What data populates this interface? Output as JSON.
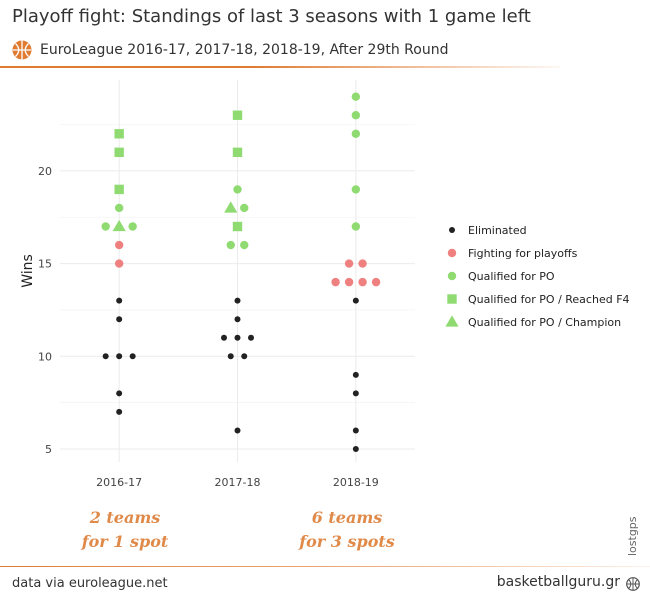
{
  "header": {
    "title": "Playoff fight: Standings of last 3 seasons with 1 game left",
    "subtitle": "EuroLeague 2016-17, 2017-18, 2018-19, After 29th Round"
  },
  "annotations": {
    "left": [
      "2 teams",
      "for 1 spot"
    ],
    "right": [
      "6 teams",
      "for 3 spots"
    ]
  },
  "footer": {
    "source": "data via euroleague.net",
    "brand": "basketballguru.gr",
    "credit": "lostgps"
  },
  "colors": {
    "eliminated": "#222222",
    "fighting": "#ef8080",
    "qualified": "#8fdb72",
    "accent": "#e07b32"
  },
  "chart_data": {
    "type": "scatter",
    "title": "",
    "xlabel": "",
    "ylabel": "Wins",
    "categories": [
      "2016-17",
      "2017-18",
      "2018-19"
    ],
    "yticks": [
      5,
      10,
      15,
      20
    ],
    "ylim": [
      4.3,
      24.9
    ],
    "grid": true,
    "legend_position": "right",
    "legend": [
      {
        "key": "elim",
        "label": "Eliminated",
        "shape": "dot",
        "color": "#222222"
      },
      {
        "key": "fight",
        "label": "Fighting for playoffs",
        "shape": "circle",
        "color": "#ef8080"
      },
      {
        "key": "po",
        "label": "Qualified for PO",
        "shape": "circle",
        "color": "#8fdb72"
      },
      {
        "key": "f4",
        "label": "Qualified for PO / Reached F4",
        "shape": "square",
        "color": "#8fdb72"
      },
      {
        "key": "champ",
        "label": "Qualified for PO / Champion",
        "shape": "triangle",
        "color": "#8fdb72"
      }
    ],
    "series": [
      {
        "key": "f4",
        "points": [
          {
            "x": "2016-17",
            "y": 22
          },
          {
            "x": "2016-17",
            "y": 21
          },
          {
            "x": "2016-17",
            "y": 19
          },
          {
            "x": "2017-18",
            "y": 23
          },
          {
            "x": "2017-18",
            "y": 21
          },
          {
            "x": "2017-18",
            "y": 17
          }
        ]
      },
      {
        "key": "champ",
        "points": [
          {
            "x": "2016-17",
            "y": 17
          },
          {
            "x": "2017-18",
            "y": 18
          }
        ]
      },
      {
        "key": "po",
        "points": [
          {
            "x": "2016-17",
            "y": 18
          },
          {
            "x": "2016-17",
            "y": 17
          },
          {
            "x": "2016-17",
            "y": 17
          },
          {
            "x": "2017-18",
            "y": 19
          },
          {
            "x": "2017-18",
            "y": 18
          },
          {
            "x": "2017-18",
            "y": 16
          },
          {
            "x": "2017-18",
            "y": 16
          },
          {
            "x": "2018-19",
            "y": 24
          },
          {
            "x": "2018-19",
            "y": 23
          },
          {
            "x": "2018-19",
            "y": 22
          },
          {
            "x": "2018-19",
            "y": 19
          },
          {
            "x": "2018-19",
            "y": 17
          }
        ]
      },
      {
        "key": "fight",
        "points": [
          {
            "x": "2016-17",
            "y": 16
          },
          {
            "x": "2016-17",
            "y": 15
          },
          {
            "x": "2018-19",
            "y": 15
          },
          {
            "x": "2018-19",
            "y": 15
          },
          {
            "x": "2018-19",
            "y": 14
          },
          {
            "x": "2018-19",
            "y": 14
          },
          {
            "x": "2018-19",
            "y": 14
          },
          {
            "x": "2018-19",
            "y": 14
          }
        ]
      },
      {
        "key": "elim",
        "points": [
          {
            "x": "2016-17",
            "y": 13
          },
          {
            "x": "2016-17",
            "y": 12
          },
          {
            "x": "2016-17",
            "y": 10
          },
          {
            "x": "2016-17",
            "y": 10
          },
          {
            "x": "2016-17",
            "y": 10
          },
          {
            "x": "2016-17",
            "y": 8
          },
          {
            "x": "2016-17",
            "y": 7
          },
          {
            "x": "2017-18",
            "y": 13
          },
          {
            "x": "2017-18",
            "y": 12
          },
          {
            "x": "2017-18",
            "y": 11
          },
          {
            "x": "2017-18",
            "y": 11
          },
          {
            "x": "2017-18",
            "y": 11
          },
          {
            "x": "2017-18",
            "y": 10
          },
          {
            "x": "2017-18",
            "y": 10
          },
          {
            "x": "2017-18",
            "y": 6
          },
          {
            "x": "2018-19",
            "y": 13
          },
          {
            "x": "2018-19",
            "y": 9
          },
          {
            "x": "2018-19",
            "y": 8
          },
          {
            "x": "2018-19",
            "y": 6
          },
          {
            "x": "2018-19",
            "y": 5
          }
        ]
      }
    ]
  }
}
